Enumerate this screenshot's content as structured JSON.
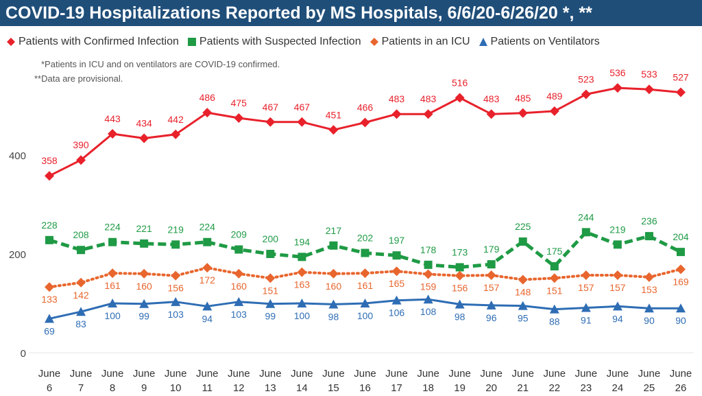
{
  "title": "COVID-19 Hospitalizations Reported by MS Hospitals, 6/6/20-6/26/20 *, **",
  "notes": [
    "*Patients in ICU and on ventilators are COVID-19 confirmed.",
    "**Data are provisional."
  ],
  "colors": {
    "title_bg": "#1f4e79",
    "confirmed": "#e8212b",
    "suspected": "#1f9a45",
    "icu": "#e8662e",
    "ventilators": "#2e6db4"
  },
  "chart_data": {
    "type": "line",
    "x": [
      [
        "June",
        "6"
      ],
      [
        "June",
        "7"
      ],
      [
        "June",
        "8"
      ],
      [
        "June",
        "9"
      ],
      [
        "June",
        "10"
      ],
      [
        "June",
        "11"
      ],
      [
        "June",
        "12"
      ],
      [
        "June",
        "13"
      ],
      [
        "June",
        "14"
      ],
      [
        "June",
        "15"
      ],
      [
        "June",
        "16"
      ],
      [
        "June",
        "17"
      ],
      [
        "June",
        "18"
      ],
      [
        "June",
        "19"
      ],
      [
        "June",
        "20"
      ],
      [
        "June",
        "21"
      ],
      [
        "June",
        "22"
      ],
      [
        "June",
        "23"
      ],
      [
        "June",
        "24"
      ],
      [
        "June",
        "25"
      ],
      [
        "June",
        "26"
      ]
    ],
    "ylim": [
      0,
      560
    ],
    "yticks": [
      0,
      200,
      400
    ],
    "grid": false,
    "legend_position": "top",
    "series": [
      {
        "name": "Patients with Confirmed Infection",
        "key": "confirmed",
        "marker": "diamond",
        "line": "solid",
        "values": [
          358,
          390,
          443,
          434,
          442,
          486,
          475,
          467,
          467,
          451,
          466,
          483,
          483,
          516,
          483,
          485,
          489,
          523,
          536,
          533,
          527
        ]
      },
      {
        "name": "Patients with Suspected Infection",
        "key": "suspected",
        "marker": "square",
        "line": "dashed",
        "values": [
          228,
          208,
          224,
          221,
          219,
          224,
          209,
          200,
          194,
          217,
          202,
          197,
          178,
          173,
          179,
          225,
          175,
          244,
          219,
          236,
          204
        ]
      },
      {
        "name": "Patients in an ICU",
        "key": "icu",
        "marker": "diamond",
        "line": "dotted",
        "values": [
          133,
          142,
          161,
          160,
          156,
          172,
          160,
          151,
          163,
          160,
          161,
          165,
          159,
          156,
          157,
          148,
          151,
          157,
          157,
          153,
          169
        ]
      },
      {
        "name": "Patients on Ventilators",
        "key": "ventilators",
        "marker": "triangle",
        "line": "solid",
        "values": [
          69,
          83,
          100,
          99,
          103,
          94,
          103,
          99,
          100,
          98,
          100,
          106,
          108,
          98,
          96,
          95,
          88,
          91,
          94,
          90,
          90
        ]
      }
    ]
  }
}
